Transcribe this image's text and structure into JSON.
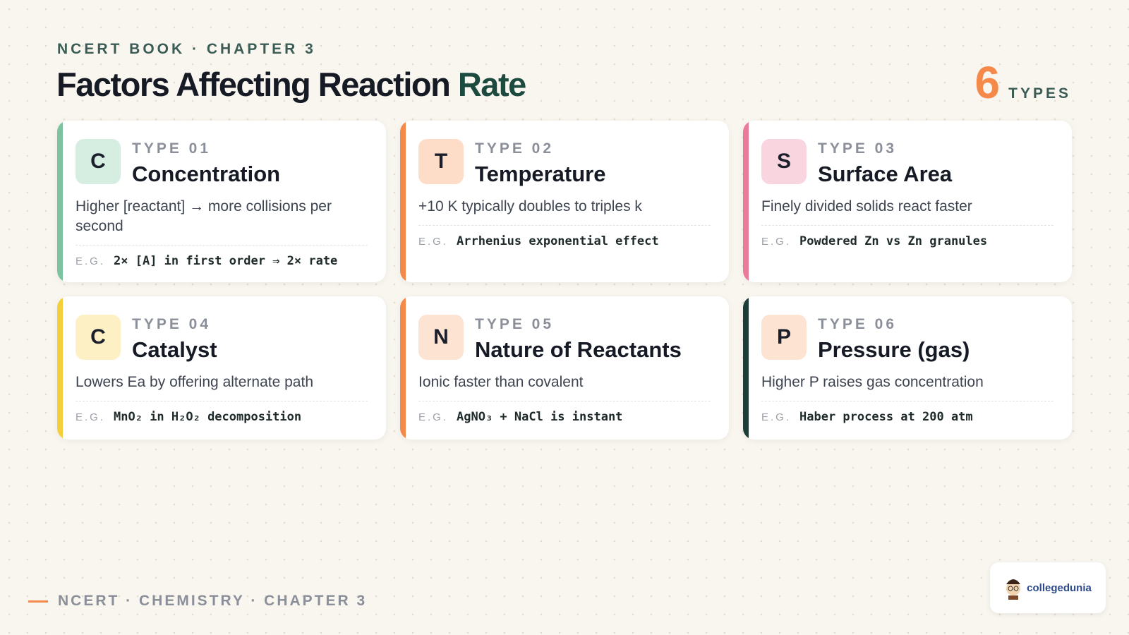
{
  "header": {
    "eyebrow": "NCERT BOOK · CHAPTER 3",
    "title_main": "Factors Affecting Reaction",
    "title_accent": "Rate",
    "count": "6",
    "count_label": "TYPES"
  },
  "example_label": "E.G.",
  "cards": [
    {
      "letter": "C",
      "type": "TYPE 01",
      "name": "Concentration",
      "description": "Higher [reactant] → more collisions per second",
      "example": "2× [A] in first order ⇒ 2× rate",
      "color": "#7cc4a0",
      "icon_bg": "#d6eee2"
    },
    {
      "letter": "T",
      "type": "TYPE 02",
      "name": "Temperature",
      "description": "+10 K typically doubles to triples k",
      "example": "Arrhenius exponential effect",
      "color": "#f4894a",
      "icon_bg": "#fddcc8"
    },
    {
      "letter": "S",
      "type": "TYPE 03",
      "name": "Surface Area",
      "description": "Finely divided solids react faster",
      "example": "Powdered Zn vs Zn granules",
      "color": "#e97a9a",
      "icon_bg": "#f9d5e0"
    },
    {
      "letter": "C",
      "type": "TYPE 04",
      "name": "Catalyst",
      "description": "Lowers Ea by offering alternate path",
      "example": "MnO₂ in H₂O₂ decomposition",
      "color": "#f5cf3a",
      "icon_bg": "#fdf0c4"
    },
    {
      "letter": "N",
      "type": "TYPE 05",
      "name": "Nature of Reactants",
      "description": "Ionic faster than covalent",
      "example": "AgNO₃ + NaCl is instant",
      "color": "#f4894a",
      "icon_bg": "#fde3d2"
    },
    {
      "letter": "P",
      "type": "TYPE 06",
      "name": "Pressure (gas)",
      "description": "Higher P raises gas concentration",
      "example": "Haber process at 200 atm",
      "color": "#1d3d36",
      "icon_bg": "#fde3d2"
    }
  ],
  "footer": {
    "text": "NCERT · CHEMISTRY · CHAPTER 3",
    "logo": "collegedunia"
  }
}
